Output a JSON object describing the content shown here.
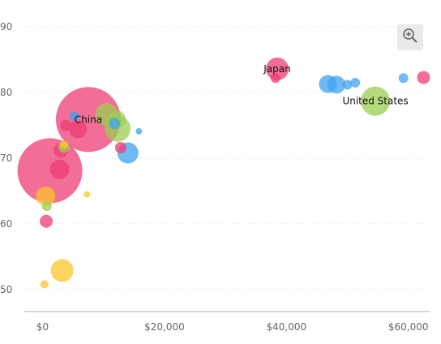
{
  "toolbar": {
    "zoom_icon": "zoom-in-icon"
  },
  "chart_data": {
    "type": "scatter",
    "bubble": true,
    "title": "",
    "xlabel": "",
    "ylabel": "",
    "xlim": [
      -3000,
      63500
    ],
    "ylim": [
      48.5,
      91.5
    ],
    "x_ticks": [
      0,
      20000,
      40000,
      60000
    ],
    "x_tick_labels": [
      "$0",
      "$20,000",
      "$40,000",
      "$60,000"
    ],
    "y_ticks": [
      50,
      60,
      70,
      80,
      90
    ],
    "y_tick_labels": [
      "50",
      "60",
      "70",
      "80",
      "90"
    ],
    "grid": "horizontal-dotted",
    "colors": {
      "pink": "#EE3E73",
      "blue": "#3FA1F2",
      "green": "#9CCD52",
      "yellow": "#FDC52C",
      "axis": "#cccccc",
      "grid": "#dddddd"
    },
    "points": [
      {
        "x": 1200,
        "y": 68.1,
        "size": 40,
        "color": "pink"
      },
      {
        "x": 7500,
        "y": 75.9,
        "size": 40,
        "color": "pink",
        "label": "China"
      },
      {
        "x": 38500,
        "y": 83.6,
        "size": 14,
        "color": "pink",
        "label": "Japan"
      },
      {
        "x": 38200,
        "y": 82.2,
        "size": 6,
        "color": "pink"
      },
      {
        "x": 62500,
        "y": 82.3,
        "size": 8,
        "color": "pink"
      },
      {
        "x": 2800,
        "y": 68.3,
        "size": 12,
        "color": "pink"
      },
      {
        "x": 3000,
        "y": 71.2,
        "size": 9,
        "color": "pink"
      },
      {
        "x": 3800,
        "y": 75.0,
        "size": 7,
        "color": "pink"
      },
      {
        "x": 5800,
        "y": 74.4,
        "size": 11,
        "color": "pink"
      },
      {
        "x": 600,
        "y": 60.4,
        "size": 8,
        "color": "pink"
      },
      {
        "x": 12800,
        "y": 71.6,
        "size": 7,
        "color": "pink"
      },
      {
        "x": 5200,
        "y": 76.4,
        "size": 6,
        "color": "blue"
      },
      {
        "x": 14000,
        "y": 70.8,
        "size": 13,
        "color": "blue"
      },
      {
        "x": 15800,
        "y": 74.1,
        "size": 4,
        "color": "blue"
      },
      {
        "x": 11800,
        "y": 75.3,
        "size": 7,
        "color": "blue"
      },
      {
        "x": 46800,
        "y": 81.3,
        "size": 11,
        "color": "blue"
      },
      {
        "x": 48200,
        "y": 81.2,
        "size": 11,
        "color": "blue"
      },
      {
        "x": 50000,
        "y": 81.2,
        "size": 6,
        "color": "blue"
      },
      {
        "x": 51300,
        "y": 81.5,
        "size": 6,
        "color": "blue"
      },
      {
        "x": 59200,
        "y": 82.2,
        "size": 6,
        "color": "blue"
      },
      {
        "x": 10500,
        "y": 76.7,
        "size": 14,
        "color": "green"
      },
      {
        "x": 12200,
        "y": 75.9,
        "size": 11,
        "color": "green"
      },
      {
        "x": 12300,
        "y": 74.5,
        "size": 16,
        "color": "green"
      },
      {
        "x": 3500,
        "y": 71.7,
        "size": 7,
        "color": "green"
      },
      {
        "x": 700,
        "y": 62.7,
        "size": 6,
        "color": "green"
      },
      {
        "x": 54600,
        "y": 78.7,
        "size": 18,
        "color": "green",
        "label": "United States"
      },
      {
        "x": 500,
        "y": 64.2,
        "size": 12,
        "color": "yellow"
      },
      {
        "x": 3200,
        "y": 52.9,
        "size": 14,
        "color": "yellow"
      },
      {
        "x": 300,
        "y": 50.8,
        "size": 5,
        "color": "yellow"
      },
      {
        "x": 7300,
        "y": 64.5,
        "size": 4,
        "color": "yellow"
      },
      {
        "x": 3500,
        "y": 72.0,
        "size": 5,
        "color": "yellow"
      }
    ]
  }
}
